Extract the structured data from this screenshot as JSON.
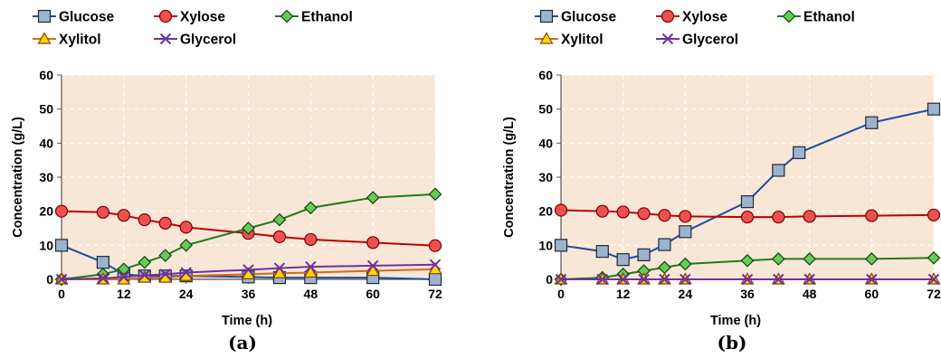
{
  "chart_data": [
    {
      "type": "line",
      "caption": "(a)",
      "xlabel": "Time (h)",
      "ylabel": "Concentration (g/L)",
      "xlim": [
        0,
        72
      ],
      "ylim": [
        0,
        60
      ],
      "xticks": [
        0,
        12,
        24,
        36,
        48,
        60,
        72
      ],
      "yticks": [
        0,
        10,
        20,
        30,
        40,
        50,
        60
      ],
      "legend": "top",
      "background": "#f8e6d6",
      "series": [
        {
          "name": "Glucose",
          "color": "#1f4e9e",
          "fill": "#9db3cc",
          "marker": "square",
          "x": [
            0,
            8,
            12,
            16,
            20,
            24,
            36,
            42,
            48,
            60,
            72
          ],
          "y": [
            10,
            5,
            1.5,
            1,
            1,
            1,
            0.7,
            0.5,
            0.5,
            0.5,
            0
          ]
        },
        {
          "name": "Xylose",
          "color": "#c00000",
          "fill": "#ee5050",
          "marker": "circle",
          "x": [
            0,
            8,
            12,
            16,
            20,
            24,
            36,
            42,
            48,
            60,
            72
          ],
          "y": [
            20,
            19.7,
            18.8,
            17.5,
            16.5,
            15.3,
            13.5,
            12.5,
            11.7,
            10.8,
            9.9
          ]
        },
        {
          "name": "Ethanol",
          "color": "#1e7a1e",
          "fill": "#66cc55",
          "marker": "diamond",
          "x": [
            0,
            8,
            12,
            16,
            20,
            24,
            36,
            42,
            48,
            60,
            72
          ],
          "y": [
            0,
            1.5,
            3,
            5,
            7,
            10,
            15,
            17.5,
            21,
            24,
            25
          ]
        },
        {
          "name": "Xylitol",
          "color": "#d2691e",
          "fill": "#ffd700",
          "marker": "triangle",
          "x": [
            0,
            8,
            12,
            16,
            20,
            24,
            36,
            42,
            48,
            60,
            72
          ],
          "y": [
            0,
            0,
            0,
            0.5,
            0.5,
            1,
            1.5,
            1.8,
            2,
            2.5,
            3
          ]
        },
        {
          "name": "Glycerol",
          "color": "#7030a0",
          "fill": "#7030a0",
          "marker": "x",
          "x": [
            0,
            8,
            12,
            16,
            20,
            24,
            36,
            42,
            48,
            60,
            72
          ],
          "y": [
            0,
            0.3,
            0.7,
            1.2,
            1.5,
            2,
            2.8,
            3.3,
            3.7,
            4,
            4.3
          ]
        }
      ]
    },
    {
      "type": "line",
      "caption": "(b)",
      "xlabel": "Time (h)",
      "ylabel": "Concentration (g/L)",
      "xlim": [
        0,
        72
      ],
      "ylim": [
        0,
        60
      ],
      "xticks": [
        0,
        12,
        24,
        36,
        48,
        60,
        72
      ],
      "yticks": [
        0,
        10,
        20,
        30,
        40,
        50,
        60
      ],
      "legend": "top",
      "background": "#f8e6d6",
      "series": [
        {
          "name": "Glucose",
          "color": "#1f4e9e",
          "fill": "#9db3cc",
          "marker": "square",
          "x": [
            0,
            8,
            12,
            16,
            20,
            24,
            36,
            42,
            46,
            60,
            72
          ],
          "y": [
            10,
            8.2,
            5.8,
            7.2,
            10.2,
            14,
            22.8,
            32,
            37.2,
            46,
            50
          ]
        },
        {
          "name": "Xylose",
          "color": "#c00000",
          "fill": "#ee5050",
          "marker": "circle",
          "x": [
            0,
            8,
            12,
            16,
            20,
            24,
            36,
            42,
            48,
            60,
            72
          ],
          "y": [
            20.3,
            20,
            19.8,
            19.3,
            18.8,
            18.5,
            18.3,
            18.3,
            18.5,
            18.7,
            18.9
          ]
        },
        {
          "name": "Ethanol",
          "color": "#1e7a1e",
          "fill": "#66cc55",
          "marker": "diamond",
          "x": [
            0,
            8,
            12,
            16,
            20,
            24,
            36,
            42,
            48,
            60,
            72
          ],
          "y": [
            0,
            0.5,
            1.5,
            2.5,
            3.5,
            4.5,
            5.5,
            6,
            6,
            6,
            6.3
          ]
        },
        {
          "name": "Xylitol",
          "color": "#d2691e",
          "fill": "#ffd700",
          "marker": "triangle",
          "x": [
            0,
            8,
            12,
            16,
            20,
            24,
            36,
            42,
            48,
            60,
            72
          ],
          "y": [
            0,
            0,
            0,
            0,
            0,
            0,
            0,
            0,
            0,
            0,
            0
          ]
        },
        {
          "name": "Glycerol",
          "color": "#7030a0",
          "fill": "#7030a0",
          "marker": "x",
          "x": [
            0,
            8,
            12,
            16,
            20,
            24,
            36,
            42,
            48,
            60,
            72
          ],
          "y": [
            0,
            0,
            0,
            0,
            0,
            0,
            0,
            0,
            0,
            0,
            0
          ]
        }
      ]
    }
  ]
}
